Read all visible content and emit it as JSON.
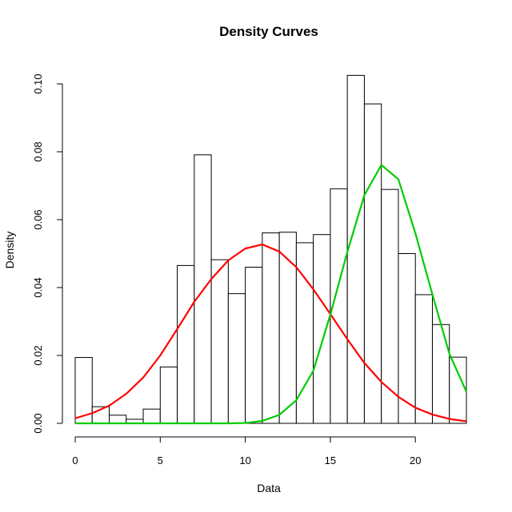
{
  "chart_data": {
    "type": "bar",
    "title": "Density Curves",
    "xlabel": "Data",
    "ylabel": "Density",
    "xlim": [
      0,
      23
    ],
    "ylim": [
      0,
      0.1
    ],
    "x_ticks": [
      0,
      5,
      10,
      15,
      20
    ],
    "x_tick_labels": [
      "0",
      "5",
      "10",
      "15",
      "20"
    ],
    "y_ticks": [
      0,
      0.02,
      0.04,
      0.06,
      0.08,
      0.1
    ],
    "y_tick_labels": [
      "0.00",
      "0.02",
      "0.04",
      "0.06",
      "0.08",
      "0.10"
    ],
    "histogram": {
      "bin_edges": [
        0,
        1,
        2,
        3,
        4,
        5,
        6,
        7,
        8,
        9,
        10,
        11,
        12,
        13,
        14,
        15,
        16,
        17,
        18,
        19,
        20,
        21,
        22,
        23
      ],
      "density": [
        0.0194,
        0.0049,
        0.0024,
        0.0012,
        0.0042,
        0.0166,
        0.0465,
        0.0791,
        0.0482,
        0.0382,
        0.046,
        0.0561,
        0.0563,
        0.0532,
        0.0556,
        0.0691,
        0.1025,
        0.0941,
        0.0689,
        0.05,
        0.0379,
        0.0291,
        0.0195
      ]
    },
    "series": [
      {
        "name": "red density curve",
        "color": "#ff0000",
        "x": [
          0,
          1,
          2,
          3,
          4,
          5,
          6,
          7,
          8,
          9,
          10,
          11,
          12,
          13,
          14,
          15,
          16,
          17,
          18,
          19,
          20,
          21,
          22,
          23
        ],
        "values": [
          0.0015,
          0.003,
          0.0052,
          0.0087,
          0.0135,
          0.02,
          0.0278,
          0.0358,
          0.0425,
          0.048,
          0.0515,
          0.0527,
          0.0506,
          0.046,
          0.0395,
          0.0322,
          0.0248,
          0.0178,
          0.0122,
          0.0078,
          0.0046,
          0.0026,
          0.0013,
          0.0006
        ]
      },
      {
        "name": "green density curve",
        "color": "#00cc00",
        "x": [
          0,
          1,
          2,
          3,
          4,
          5,
          6,
          7,
          8,
          9,
          10,
          11,
          12,
          13,
          14,
          15,
          16,
          17,
          18,
          19,
          20,
          21,
          22,
          23
        ],
        "values": [
          0,
          0,
          0,
          0,
          0,
          0,
          0,
          0,
          0,
          0,
          0.0001,
          0.0007,
          0.0025,
          0.0068,
          0.0155,
          0.032,
          0.0505,
          0.0672,
          0.0761,
          0.0719,
          0.056,
          0.038,
          0.0205,
          0.0093
        ]
      }
    ]
  }
}
